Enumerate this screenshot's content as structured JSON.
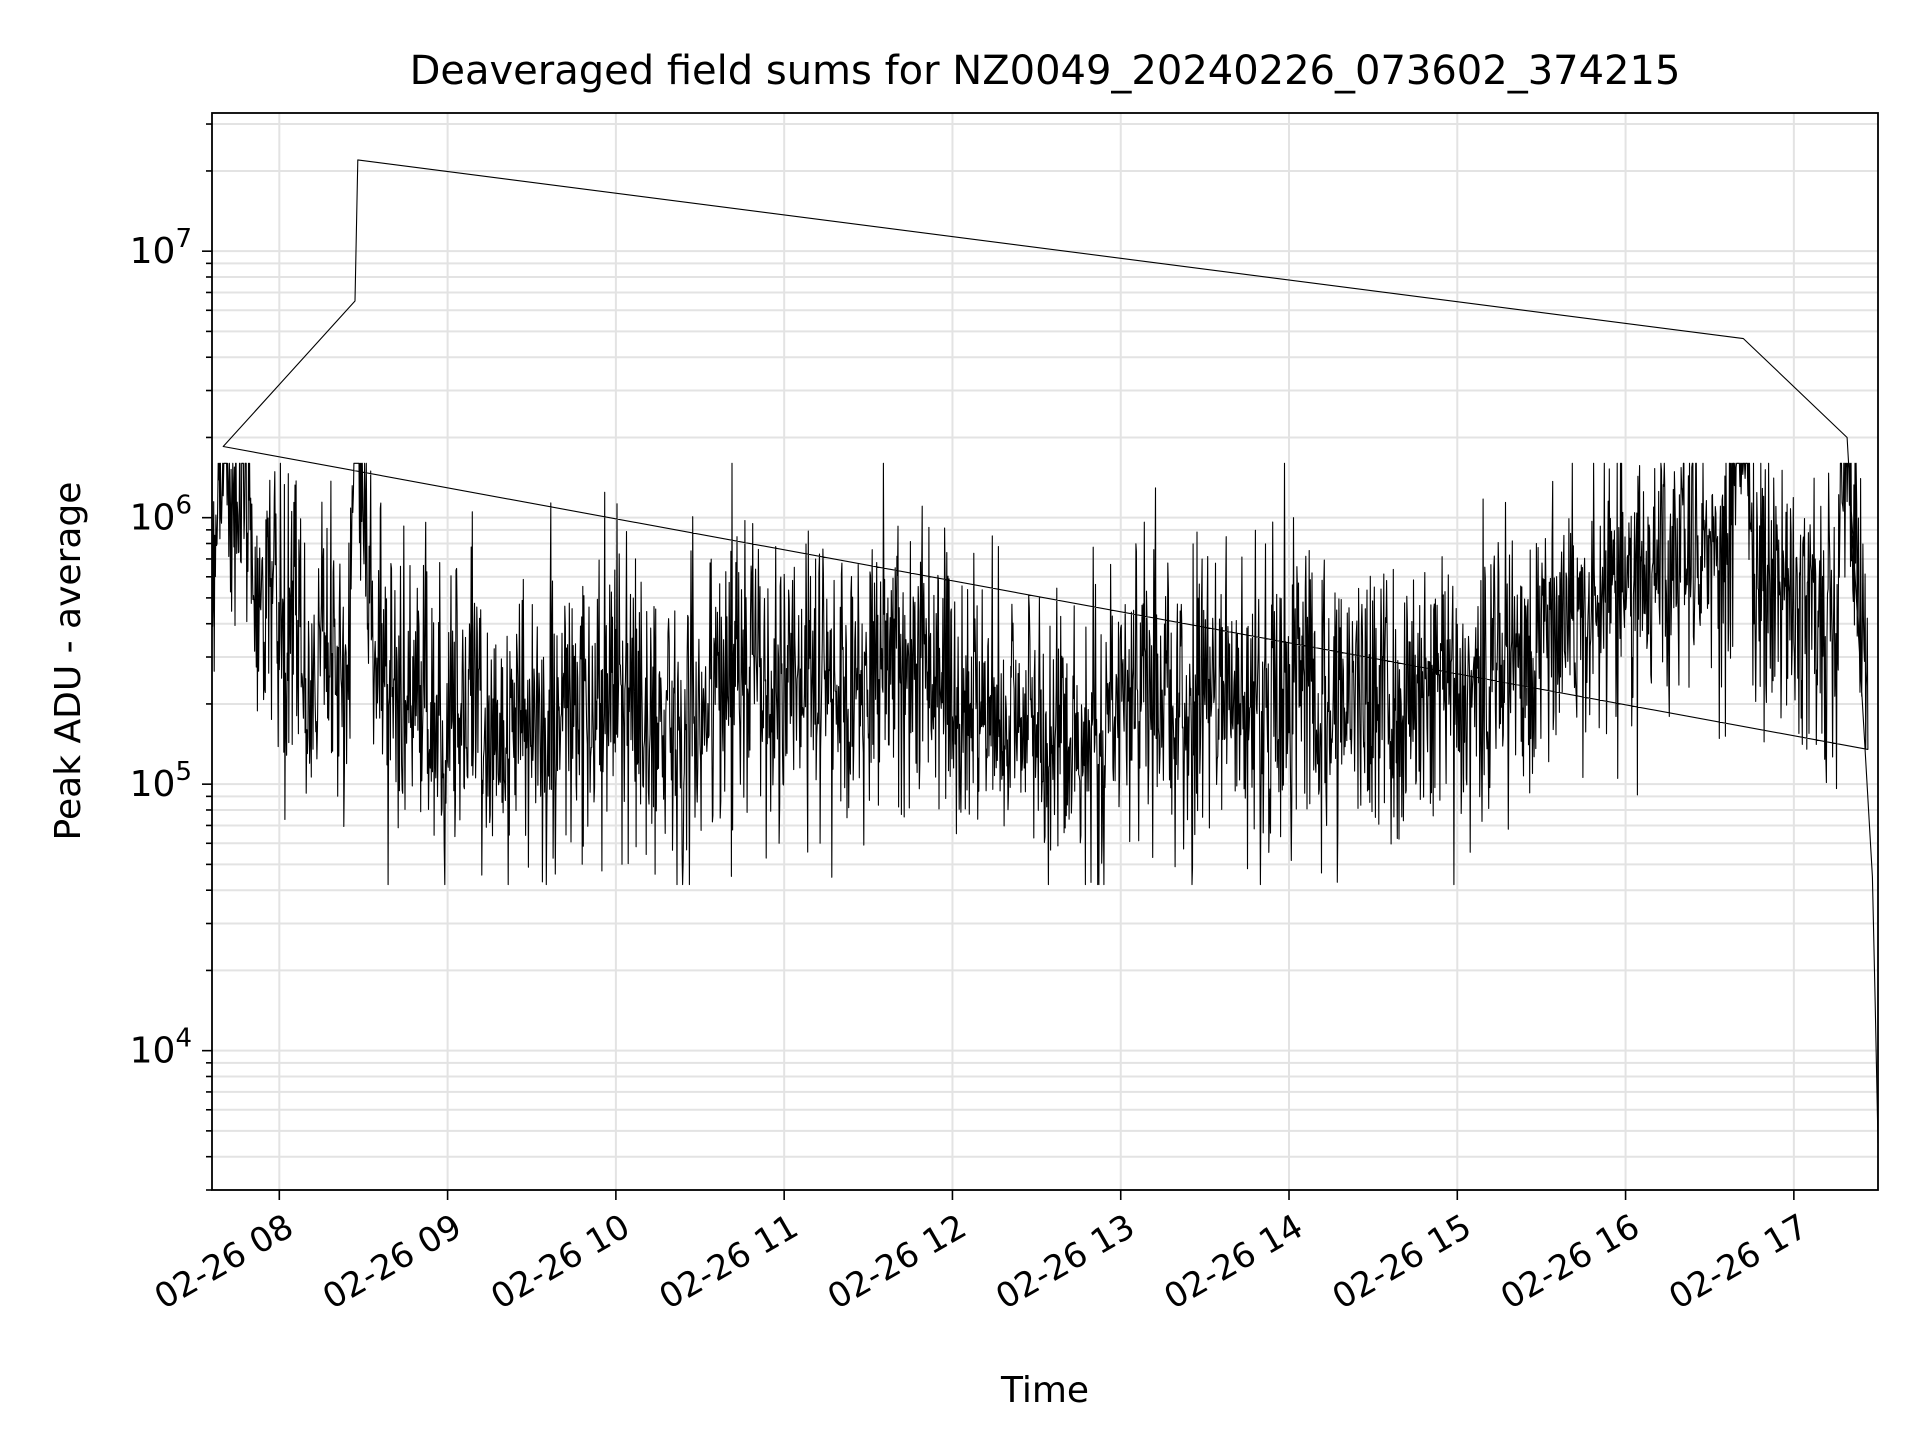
{
  "chart_data": {
    "type": "line",
    "title": "Deaveraged field sums for NZ0049_20240226_073602_374215",
    "xlabel": "Time",
    "ylabel": "Peak ADU - average",
    "yscale": "log",
    "grid": true,
    "line_color": "#000000",
    "x_ticks": [
      "02-26 08",
      "02-26 09",
      "02-26 10",
      "02-26 11",
      "02-26 12",
      "02-26 13",
      "02-26 14",
      "02-26 15",
      "02-26 16",
      "02-26 17"
    ],
    "y_ticks": [
      {
        "base": "10",
        "exp": "4"
      },
      {
        "base": "10",
        "exp": "5"
      },
      {
        "base": "10",
        "exp": "6"
      },
      {
        "base": "10",
        "exp": "7"
      }
    ],
    "ylim": [
      3000,
      33000000
    ],
    "xlim": [
      "2024-02-26 07:36",
      "2024-02-26 17:30"
    ],
    "series": [
      {
        "values": [
          [
            "2024-02-26 07:36",
            600000
          ],
          [
            "2024-02-26 07:38",
            1300000
          ],
          [
            "2024-02-26 07:40",
            1850000
          ],
          [
            "2024-02-26 07:43",
            1200000
          ],
          [
            "2024-02-26 07:46",
            1500000
          ],
          [
            "2024-02-26 07:50",
            750000
          ],
          [
            "2024-02-26 07:54",
            420000
          ],
          [
            "2024-02-26 07:58",
            800000
          ],
          [
            "2024-02-26 08:00",
            250000
          ],
          [
            "2024-02-26 08:05",
            450000
          ],
          [
            "2024-02-26 08:10",
            220000
          ],
          [
            "2024-02-26 08:15",
            350000
          ],
          [
            "2024-02-26 08:20",
            300000
          ],
          [
            "2024-02-26 08:25",
            260000
          ],
          [
            "2024-02-26 08:27",
            6500000
          ],
          [
            "2024-02-26 08:28",
            22000000
          ],
          [
            "2024-02-26 08:29",
            1200000
          ],
          [
            "2024-02-26 08:35",
            300000
          ],
          [
            "2024-02-26 08:45",
            200000
          ],
          [
            "2024-02-26 08:55",
            180000
          ],
          [
            "2024-02-26 09:05",
            220000
          ],
          [
            "2024-02-26 09:20",
            150000
          ],
          [
            "2024-02-26 09:35",
            170000
          ],
          [
            "2024-02-26 09:50",
            190000
          ],
          [
            "2024-02-26 10:05",
            200000
          ],
          [
            "2024-02-26 10:20",
            170000
          ],
          [
            "2024-02-26 10:35",
            200000
          ],
          [
            "2024-02-26 10:45",
            350000
          ],
          [
            "2024-02-26 10:55",
            200000
          ],
          [
            "2024-02-26 11:10",
            260000
          ],
          [
            "2024-02-26 11:25",
            230000
          ],
          [
            "2024-02-26 11:40",
            350000
          ],
          [
            "2024-02-26 11:55",
            250000
          ],
          [
            "2024-02-26 12:05",
            180000
          ],
          [
            "2024-02-26 12:20",
            200000
          ],
          [
            "2024-02-26 12:35",
            140000
          ],
          [
            "2024-02-26 12:50",
            160000
          ],
          [
            "2024-02-26 13:05",
            250000
          ],
          [
            "2024-02-26 13:20",
            180000
          ],
          [
            "2024-02-26 13:35",
            220000
          ],
          [
            "2024-02-26 13:50",
            200000
          ],
          [
            "2024-02-26 14:05",
            240000
          ],
          [
            "2024-02-26 14:20",
            220000
          ],
          [
            "2024-02-26 14:35",
            200000
          ],
          [
            "2024-02-26 14:50",
            210000
          ],
          [
            "2024-02-26 15:05",
            250000
          ],
          [
            "2024-02-26 15:20",
            300000
          ],
          [
            "2024-02-26 15:35",
            400000
          ],
          [
            "2024-02-26 15:50",
            550000
          ],
          [
            "2024-02-26 16:05",
            600000
          ],
          [
            "2024-02-26 16:20",
            650000
          ],
          [
            "2024-02-26 16:35",
            700000
          ],
          [
            "2024-02-26 16:42",
            4700000
          ],
          [
            "2024-02-26 16:45",
            800000
          ],
          [
            "2024-02-26 16:55",
            500000
          ],
          [
            "2024-02-26 17:05",
            450000
          ],
          [
            "2024-02-26 17:15",
            500000
          ],
          [
            "2024-02-26 17:19",
            2000000
          ],
          [
            "2024-02-26 17:23",
            600000
          ],
          [
            "2024-02-26 17:26",
            200000
          ],
          [
            "2024-02-26 17:28",
            45000
          ],
          [
            "2024-02-26 17:29",
            15000
          ],
          [
            "2024-02-26 17:30",
            4500
          ]
        ]
      }
    ]
  }
}
